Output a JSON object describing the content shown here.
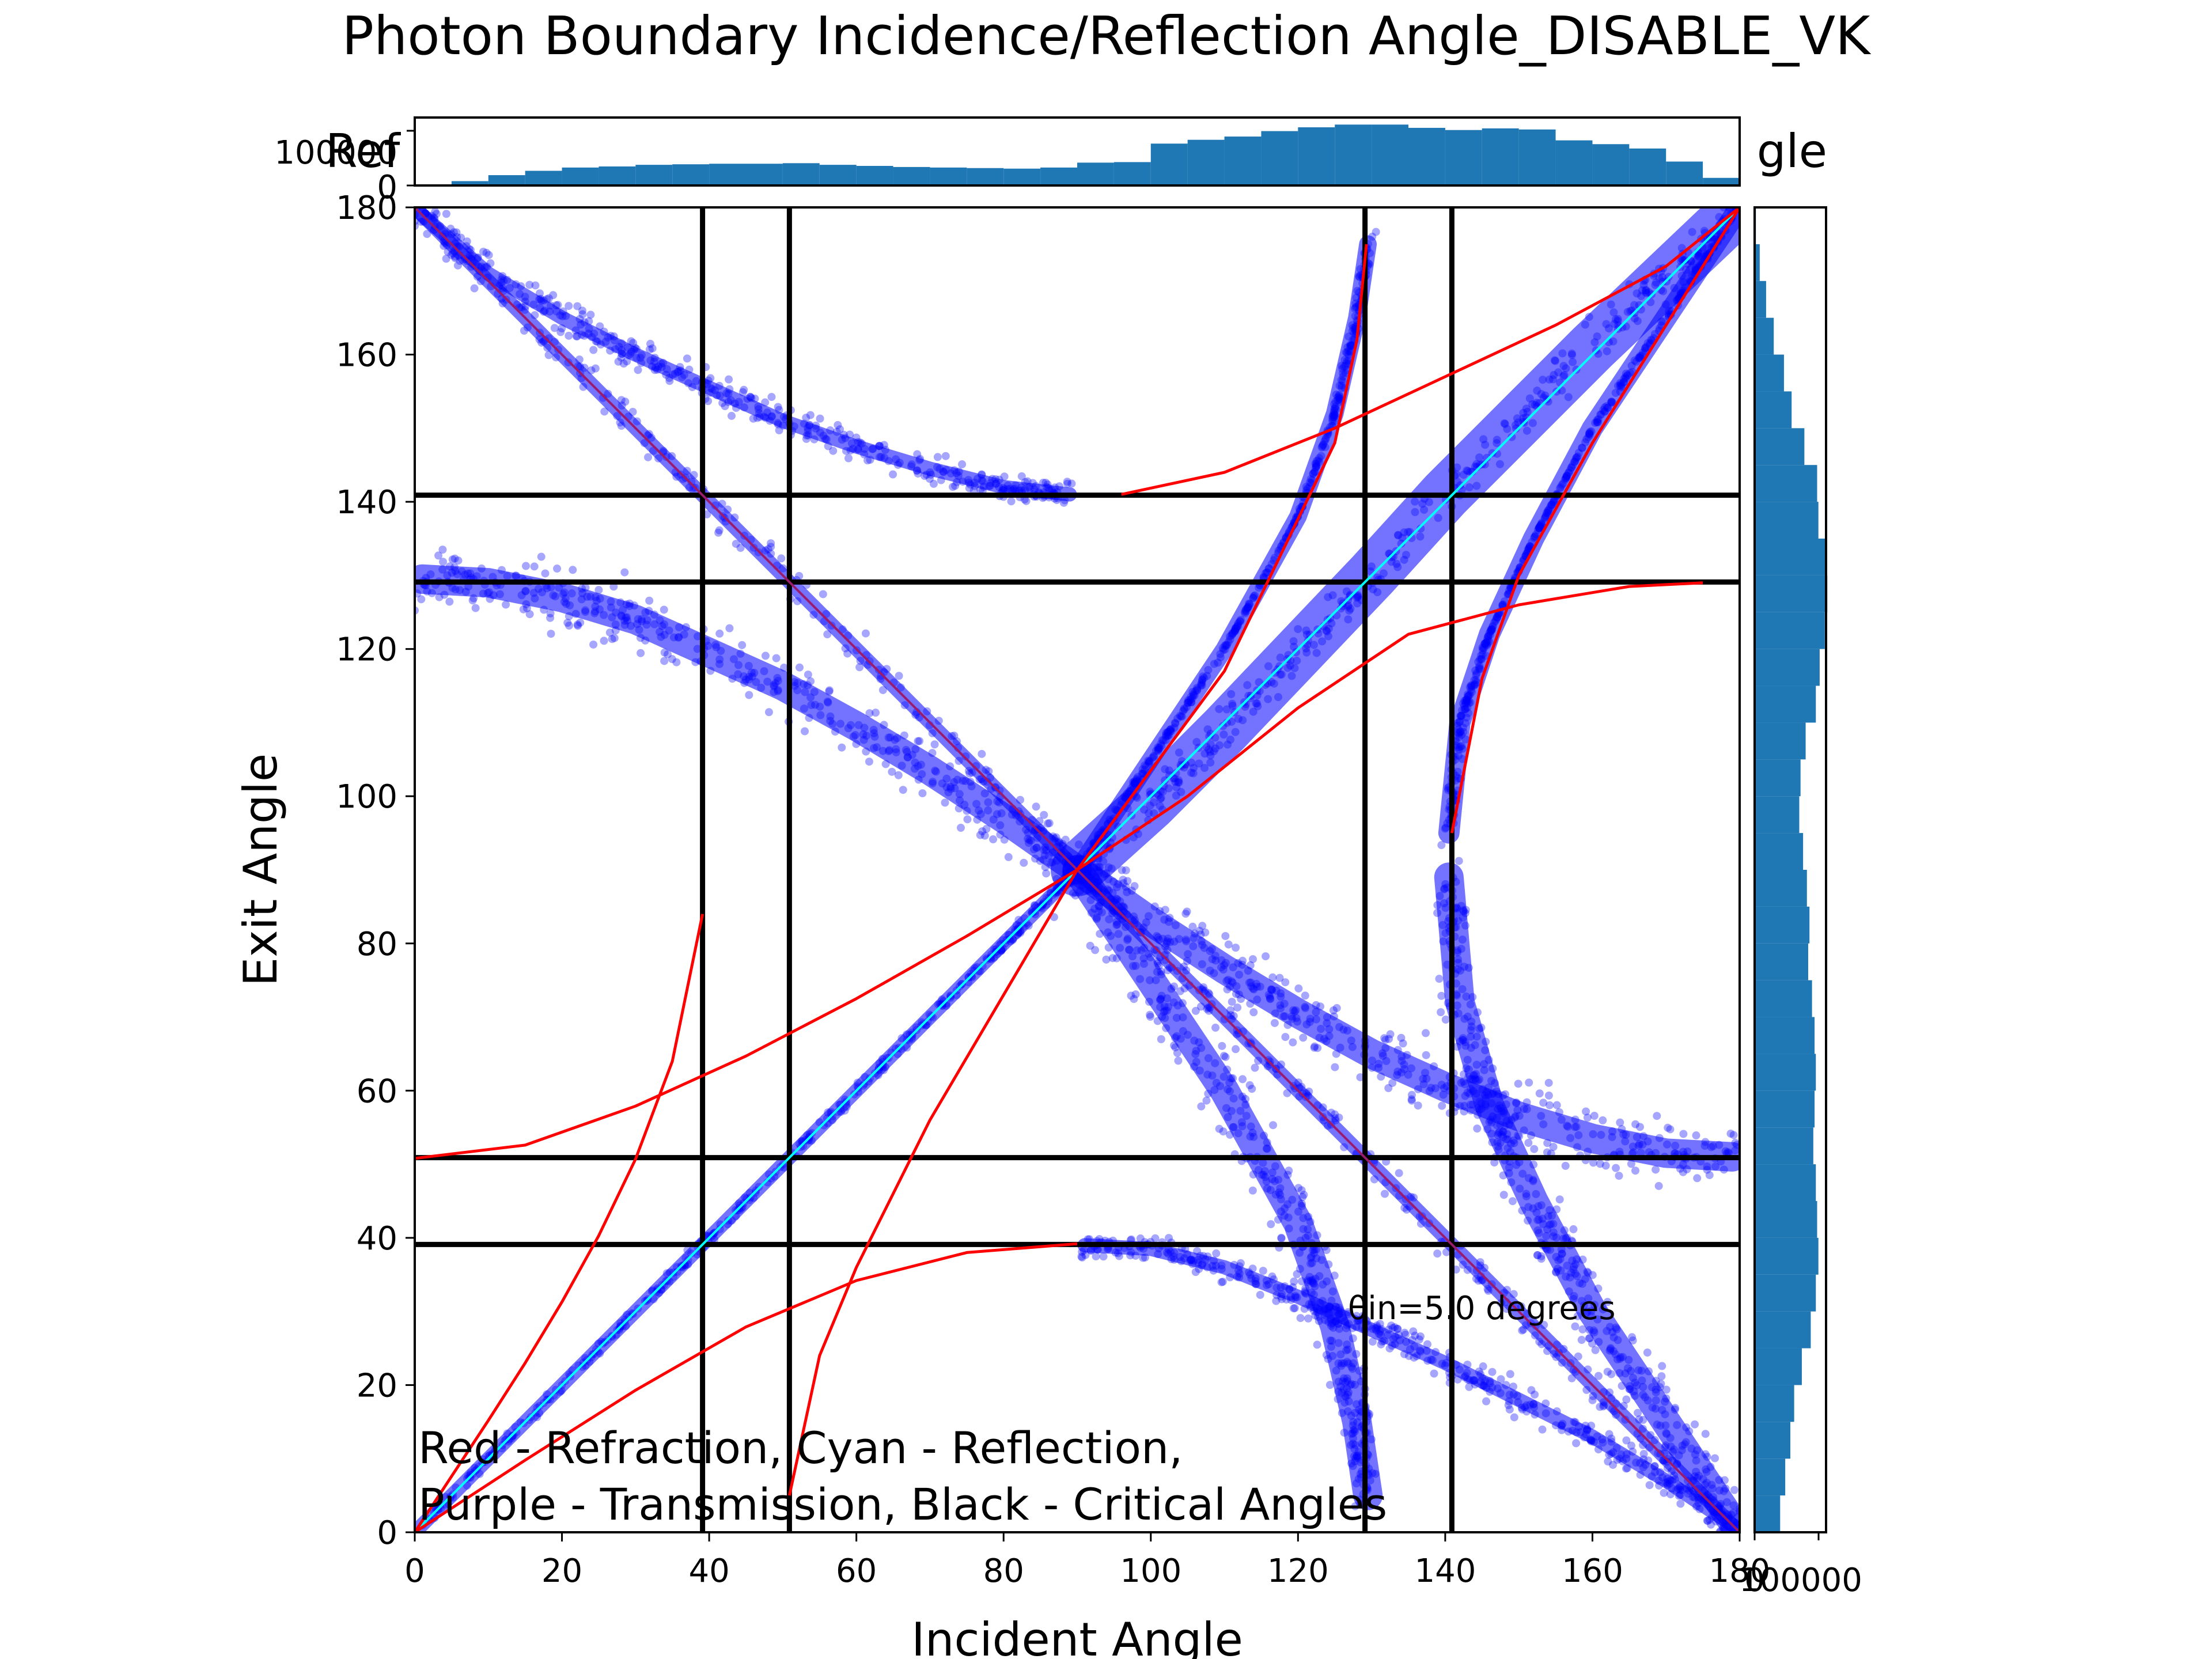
{
  "chart_data": {
    "type": "scatter",
    "title": "Photon Boundary Incidence/Reflection Angle_DISABLE_VK",
    "behind_title_fragments": [
      "Ref",
      "gle"
    ],
    "xlabel": "Incident Angle",
    "ylabel": "Exit Angle",
    "xlim": [
      0,
      180
    ],
    "ylim": [
      0,
      180
    ],
    "xticks": [
      "0",
      "20",
      "40",
      "60",
      "80",
      "100",
      "120",
      "140",
      "160",
      "180"
    ],
    "yticks": [
      "0",
      "20",
      "40",
      "60",
      "80",
      "100",
      "120",
      "140",
      "160",
      "180"
    ],
    "grid": false,
    "annotation": "θin=5.0 degrees",
    "legend_text": [
      "Red - Refraction, Cyan - Reflection,",
      "Purple - Transmission, Black - Critical Angles"
    ],
    "critical_angles_x": [
      39.1,
      50.9,
      129.1,
      140.9
    ],
    "critical_angles_y": [
      39.1,
      50.9,
      129.1,
      140.9
    ],
    "colors": {
      "scatter": "#0000ff",
      "refraction": "#ff0000",
      "reflection": "#00ffff",
      "transmission": "#9b1c6f",
      "critical": "#000000",
      "histogram": "#1f77b4"
    },
    "scatter_bands": [
      {
        "name": "transmission-diagonal",
        "x": [
          0,
          40,
          90,
          140,
          180
        ],
        "y": [
          180,
          140,
          90,
          40,
          0
        ],
        "width": 1.2
      },
      {
        "name": "upper-left-arc",
        "x": [
          1,
          10,
          20,
          30,
          40,
          50,
          60,
          70,
          80,
          89
        ],
        "y": [
          179,
          171,
          165,
          160,
          155.5,
          151,
          147.5,
          144.5,
          142,
          141
        ],
        "width": 1.2
      },
      {
        "name": "left-arc-130",
        "x": [
          1,
          10,
          20,
          30,
          40,
          50,
          60,
          70,
          80,
          90
        ],
        "y": [
          129.5,
          129,
          127,
          124,
          119.5,
          115,
          109.5,
          103.5,
          97,
          90
        ],
        "width": 2.5
      },
      {
        "name": "right-arc-50",
        "x": [
          90,
          100,
          110,
          120,
          130,
          140,
          150,
          160,
          170,
          179
        ],
        "y": [
          90,
          83,
          76.5,
          70.5,
          65,
          60.5,
          56.5,
          53.5,
          51.5,
          51
        ],
        "width": 2.5
      },
      {
        "name": "lower-right-arc",
        "x": [
          91,
          100,
          110,
          120,
          130,
          140,
          150,
          160,
          170,
          179
        ],
        "y": [
          39,
          38.5,
          36,
          32,
          27.5,
          23,
          18,
          13,
          7,
          1
        ],
        "width": 1.2
      },
      {
        "name": "reflection-wedge-upper",
        "x": [
          90,
          100,
          110,
          120,
          130,
          140,
          150,
          160,
          170,
          180
        ],
        "y": [
          90,
          99,
          109,
          119.5,
          130,
          141,
          151,
          161,
          170.5,
          180
        ],
        "width": 4.5
      },
      {
        "name": "reflection-diagonal-lower",
        "x": [
          0,
          20,
          40,
          60,
          80,
          90
        ],
        "y": [
          0,
          20,
          40,
          60,
          80,
          90
        ],
        "width": 1.2
      },
      {
        "name": "refraction-band-upper",
        "x": [
          90,
          100,
          110,
          120,
          125,
          128,
          129.5
        ],
        "y": [
          90,
          105,
          120,
          138,
          152,
          165,
          175
        ],
        "width": 1.5
      },
      {
        "name": "refraction-band-lower",
        "x": [
          90,
          100,
          110,
          120,
          125,
          128,
          129.5
        ],
        "y": [
          90,
          75,
          60,
          42,
          28,
          15,
          5
        ],
        "width": 2.5
      },
      {
        "name": "refraction-band-right-upper",
        "x": [
          140.5,
          142,
          146,
          152,
          160,
          170,
          180
        ],
        "y": [
          95,
          110,
          122,
          135,
          150,
          165,
          180
        ],
        "width": 1.8
      },
      {
        "name": "refraction-band-right-lower",
        "x": [
          140.5,
          142,
          146,
          152,
          160,
          170,
          180
        ],
        "y": [
          89,
          72,
          58,
          45,
          30,
          15,
          0
        ],
        "width": 2.5
      }
    ],
    "red_curves": [
      {
        "x": [
          0,
          5,
          10,
          15,
          20,
          25,
          30,
          35,
          39.1
        ],
        "y": [
          0,
          7.6,
          15.2,
          23,
          31.3,
          40.3,
          50.7,
          64,
          84
        ]
      },
      {
        "x": [
          0,
          15,
          30,
          45,
          60,
          75,
          90
        ],
        "y": [
          0,
          9.8,
          19.3,
          27.9,
          34.2,
          38,
          39.2
        ]
      },
      {
        "x": [
          0,
          15,
          30,
          45,
          60,
          75,
          90
        ],
        "y": [
          50.8,
          52.6,
          57.9,
          64.7,
          72.5,
          81,
          90
        ]
      },
      {
        "x": [
          50.9,
          55,
          60,
          70,
          80,
          90
        ],
        "y": [
          5,
          24,
          36,
          56,
          73,
          90
        ]
      },
      {
        "x": [
          90,
          110,
          125,
          128,
          129.3
        ],
        "y": [
          90,
          117,
          148,
          162,
          175
        ]
      },
      {
        "x": [
          90,
          105,
          120,
          135,
          150,
          165,
          175
        ],
        "y": [
          90,
          100,
          112,
          122,
          126,
          128.5,
          129
        ]
      },
      {
        "x": [
          96,
          110,
          125,
          140,
          155,
          170,
          180
        ],
        "y": [
          141,
          144,
          150,
          157,
          164,
          172,
          180
        ]
      },
      {
        "x": [
          140.9,
          145,
          150,
          160,
          170,
          180
        ],
        "y": [
          95,
          116,
          130,
          148,
          164,
          180
        ]
      }
    ],
    "cyan_line": {
      "x": [
        0,
        180
      ],
      "y": [
        0,
        180
      ]
    },
    "purple_line": {
      "x": [
        0,
        180
      ],
      "y": [
        180,
        0
      ]
    },
    "top_histogram": {
      "yticks": [
        "0",
        "100000"
      ],
      "bin_edges": [
        0,
        5,
        10,
        15,
        20,
        25,
        30,
        35,
        40,
        45,
        50,
        55,
        60,
        65,
        70,
        75,
        80,
        85,
        90,
        95,
        100,
        105,
        110,
        115,
        120,
        125,
        130,
        135,
        140,
        145,
        150,
        155,
        160,
        165,
        170,
        175,
        180
      ],
      "counts": [
        1000,
        8000,
        19000,
        27000,
        33000,
        35000,
        38000,
        39000,
        40000,
        40000,
        41000,
        38000,
        36000,
        34000,
        33000,
        32000,
        31000,
        33000,
        42000,
        43000,
        77000,
        84000,
        90000,
        100000,
        107000,
        112000,
        112000,
        106000,
        102000,
        105000,
        103000,
        83000,
        76000,
        68000,
        44000,
        14000
      ],
      "ylim": [
        0,
        125000
      ]
    },
    "right_histogram": {
      "xticks": [
        "0",
        "100000"
      ],
      "bin_edges": [
        0,
        5,
        10,
        15,
        20,
        25,
        30,
        35,
        40,
        45,
        50,
        55,
        60,
        65,
        70,
        75,
        80,
        85,
        90,
        95,
        100,
        105,
        110,
        115,
        120,
        125,
        130,
        135,
        140,
        145,
        150,
        155,
        160,
        165,
        170,
        175,
        180
      ],
      "counts": [
        40000,
        48000,
        56000,
        62000,
        74000,
        88000,
        96000,
        100000,
        98000,
        96000,
        92000,
        94000,
        96000,
        94000,
        90000,
        84000,
        86000,
        82000,
        76000,
        70000,
        72000,
        80000,
        96000,
        102000,
        110000,
        114000,
        112000,
        100000,
        98000,
        78000,
        58000,
        46000,
        30000,
        18000,
        8000,
        2000
      ],
      "xlim": [
        0,
        112000
      ]
    }
  }
}
